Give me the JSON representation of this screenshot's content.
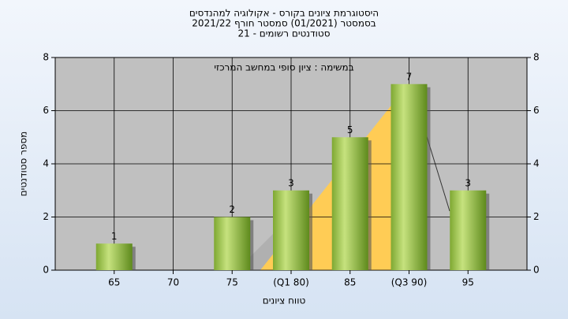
{
  "chart_data": {
    "type": "bar",
    "title": [
      "היסטוגרמת ציונים בקורס - אקולוגיה למהנדסים",
      "בסמסטר  (01/2021)  סמסטר חורף 2021/22",
      "סטודנטים רשומים - 21"
    ],
    "annotation": "במשימה : ציון סופי במחשב המרכזי",
    "xlabel": "טווח ציונים",
    "ylabel": "מספר סטודנטים",
    "categories": [
      "65",
      "70",
      "75",
      "(Q1 80)",
      "85",
      "(Q3 90)",
      "95"
    ],
    "values": [
      1,
      null,
      2,
      3,
      5,
      7,
      3
    ],
    "color": "#94c040",
    "ylim": [
      0,
      8
    ],
    "yticks": [
      0,
      2,
      4,
      6,
      8
    ],
    "y2lim": [
      0,
      8
    ],
    "y2ticks": [
      0,
      2,
      4,
      6,
      8
    ],
    "grid": true
  }
}
